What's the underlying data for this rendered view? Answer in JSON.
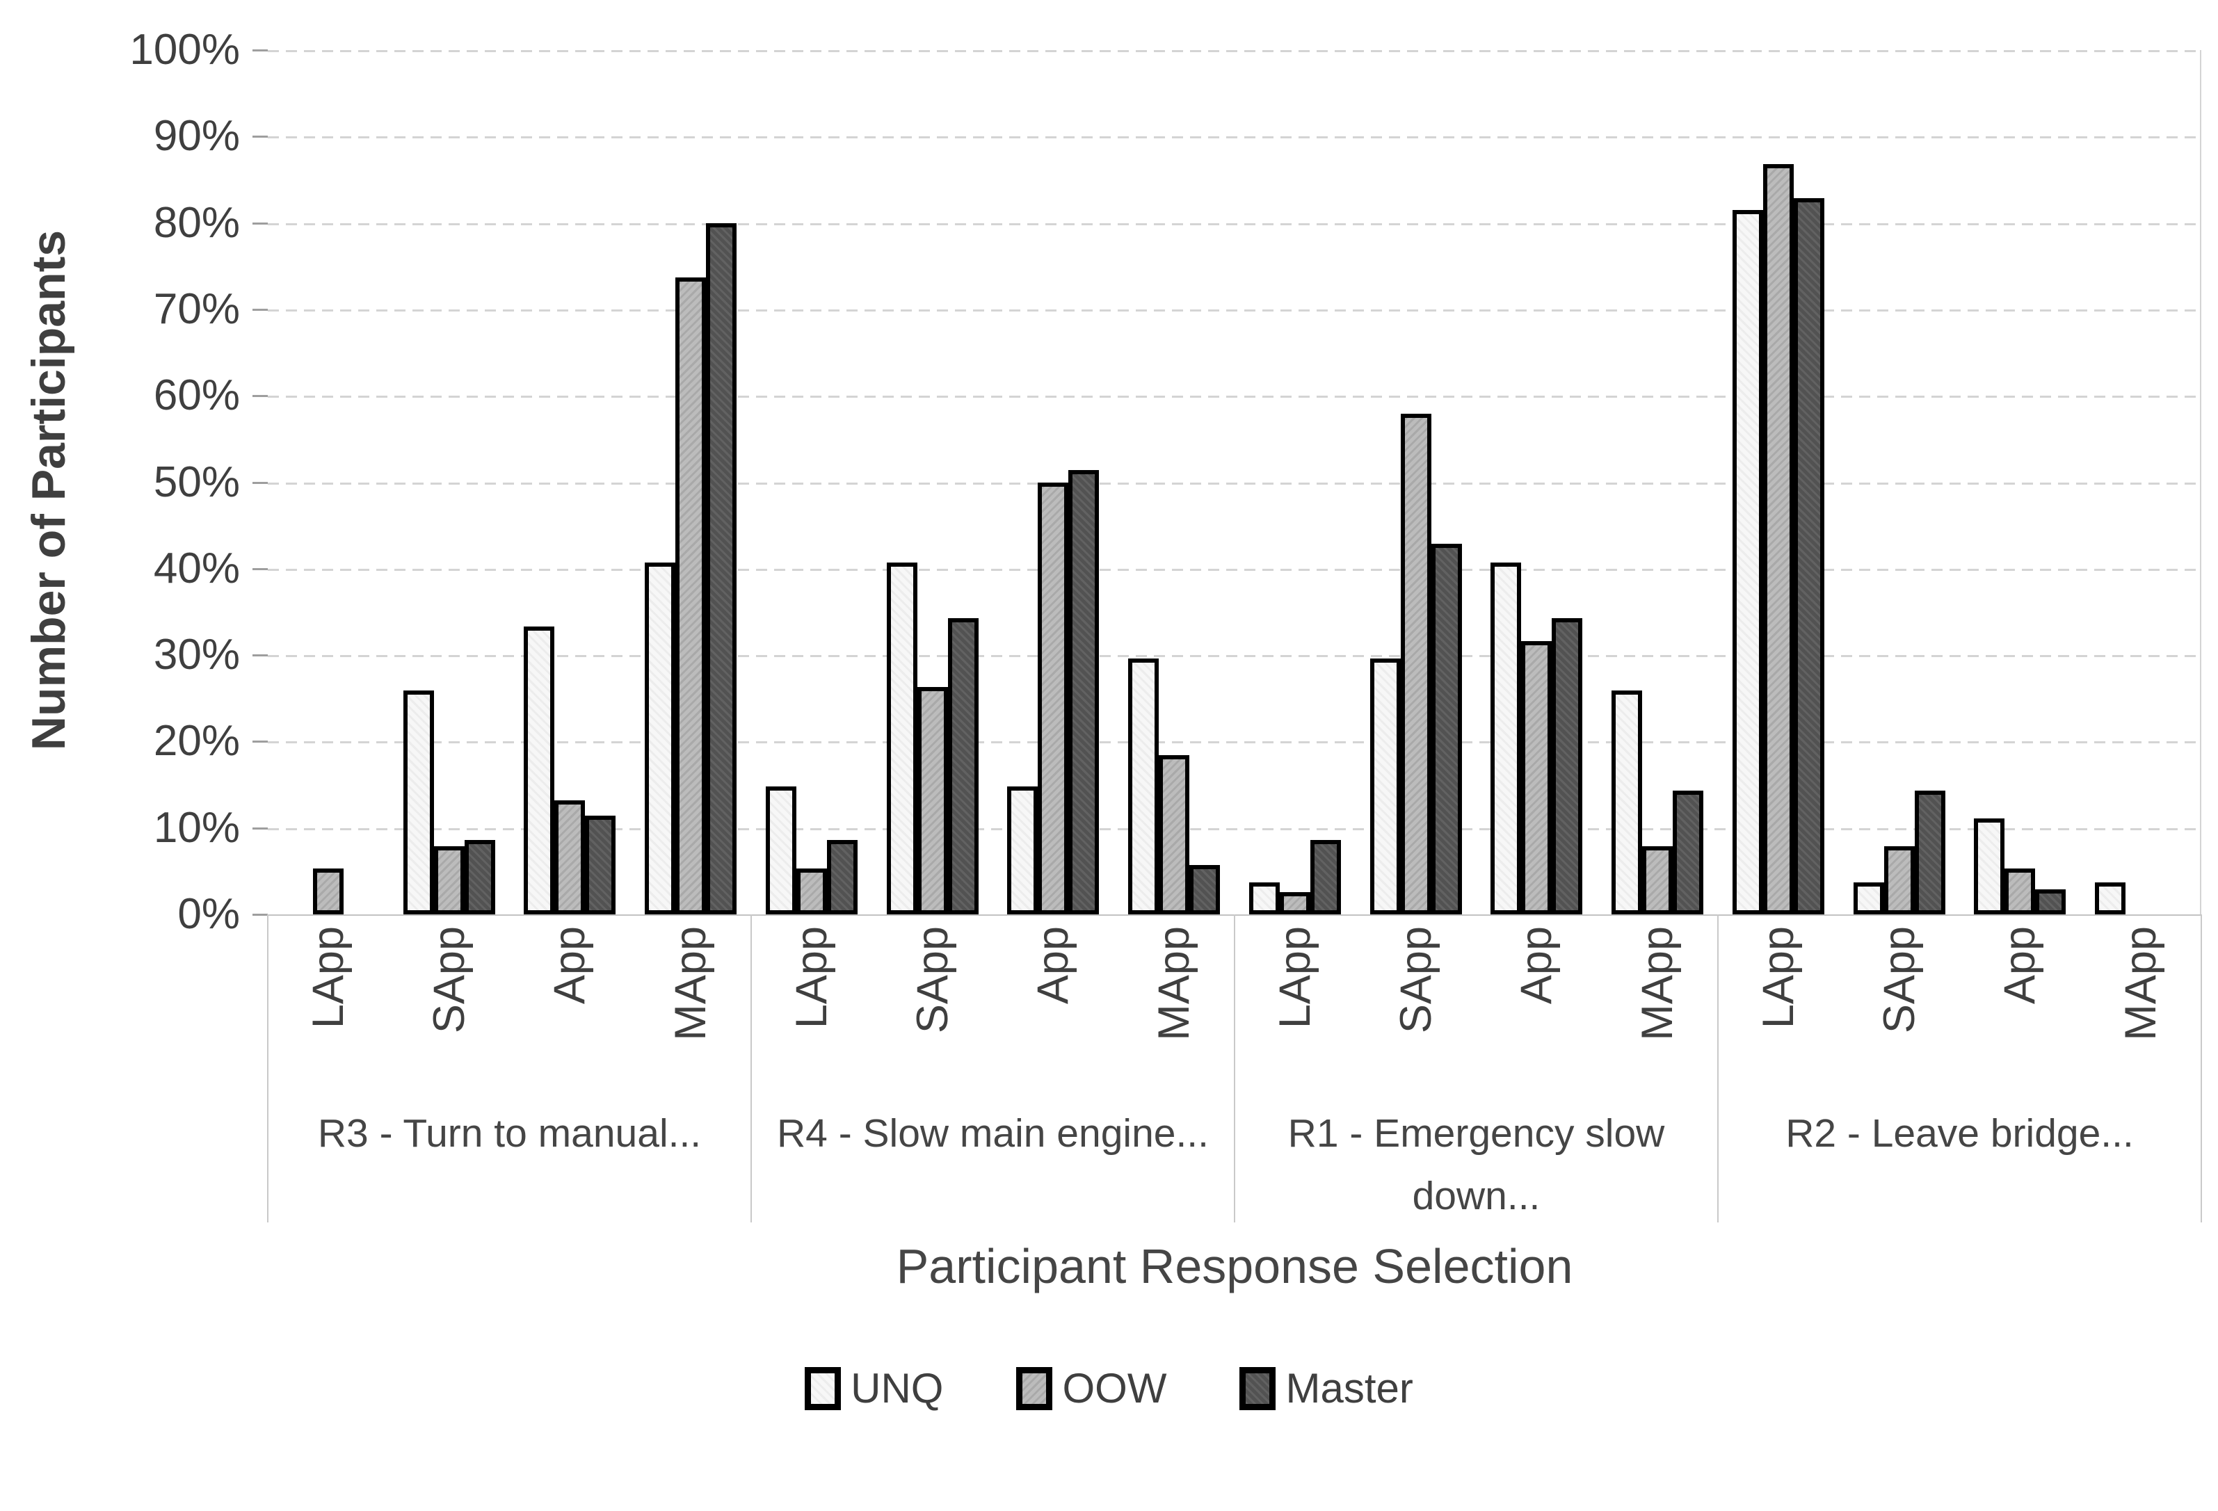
{
  "chart_data": {
    "type": "bar",
    "title": "",
    "ylabel": "Number of Participants",
    "xlabel": "Participant Response Selection",
    "ylim": [
      0,
      100
    ],
    "ytick_step": 10,
    "ytick_labels": [
      "0%",
      "10%",
      "20%",
      "30%",
      "40%",
      "50%",
      "60%",
      "70%",
      "80%",
      "90%",
      "100%"
    ],
    "grid": "horizontal-dashed",
    "legend_position": "bottom",
    "categories": [
      "LApp",
      "SApp",
      "App",
      "MApp"
    ],
    "series": [
      {
        "name": "UNQ",
        "color": "#f7f7f7"
      },
      {
        "name": "OOW",
        "color": "#bcbcbc"
      },
      {
        "name": "Master",
        "color": "#525252"
      }
    ],
    "groups": [
      {
        "label": "R3 - Turn to manual...",
        "values": {
          "UNQ": [
            0,
            25.9,
            33.3,
            40.7
          ],
          "OOW": [
            5.3,
            7.9,
            13.2,
            73.7
          ],
          "Master": [
            0,
            8.6,
            11.4,
            80.0
          ]
        }
      },
      {
        "label": "R4 - Slow main engine...",
        "values": {
          "UNQ": [
            14.8,
            40.7,
            14.8,
            29.6
          ],
          "OOW": [
            5.3,
            26.3,
            50.0,
            18.4
          ],
          "Master": [
            8.6,
            34.3,
            51.4,
            5.7
          ]
        }
      },
      {
        "label": "R1 - Emergency slow down...",
        "values": {
          "UNQ": [
            3.7,
            29.6,
            40.7,
            25.9
          ],
          "OOW": [
            2.6,
            57.9,
            31.6,
            7.9
          ],
          "Master": [
            8.6,
            42.9,
            34.3,
            14.3
          ]
        }
      },
      {
        "label": "R2 - Leave bridge...",
        "values": {
          "UNQ": [
            81.5,
            3.7,
            11.1,
            3.7
          ],
          "OOW": [
            86.8,
            7.9,
            5.3,
            0
          ],
          "Master": [
            82.9,
            14.3,
            2.9,
            0
          ]
        }
      }
    ]
  }
}
